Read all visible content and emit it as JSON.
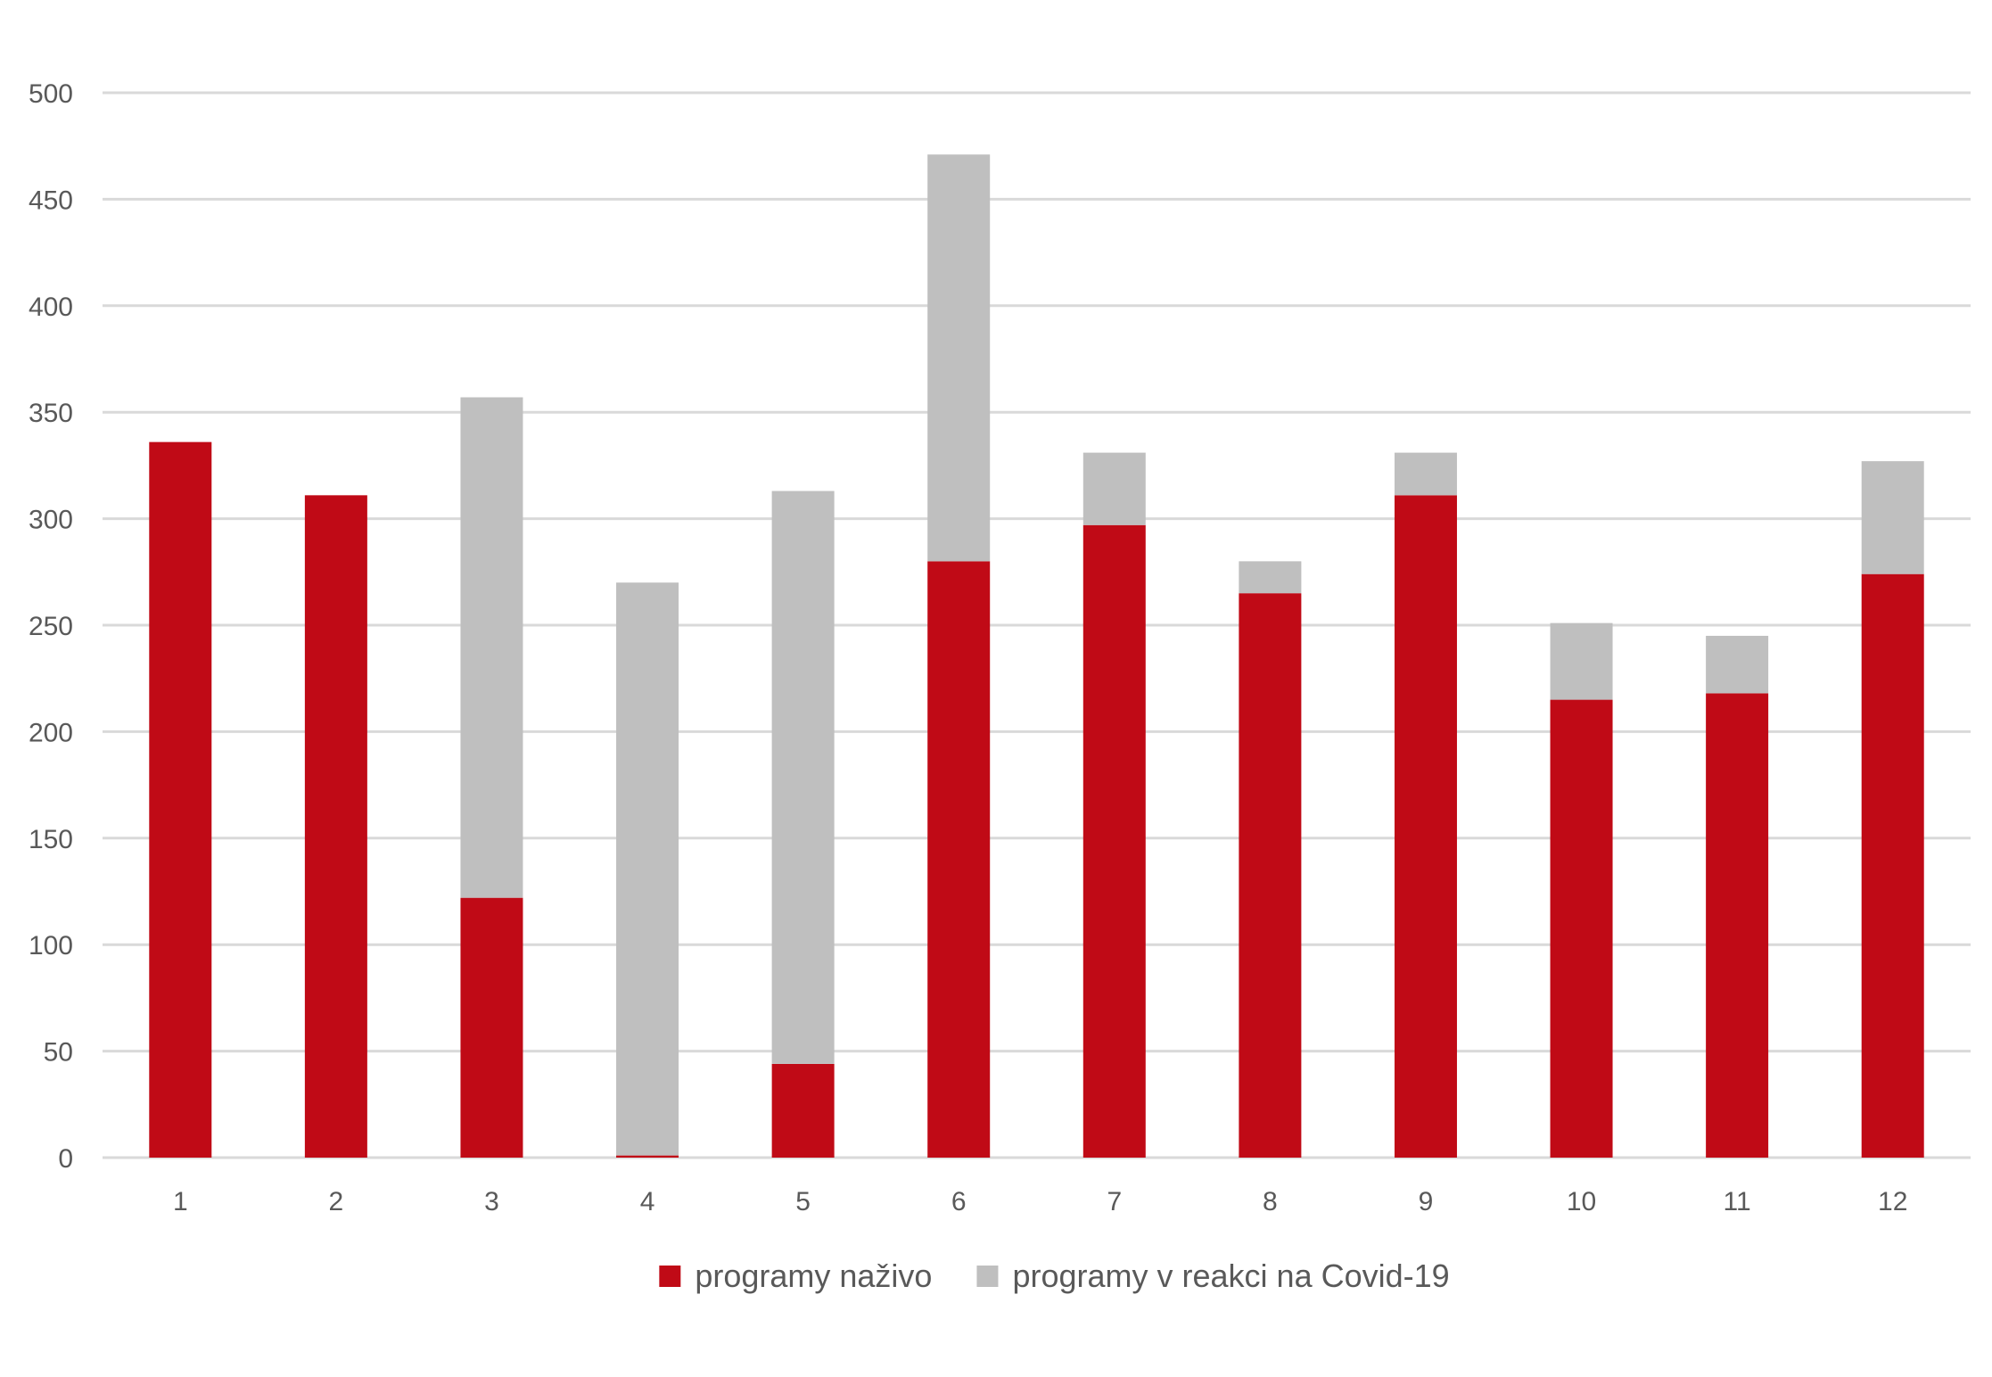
{
  "chart_data": {
    "type": "bar",
    "stacked": true,
    "title": "",
    "xlabel": "",
    "ylabel": "",
    "categories": [
      "1",
      "2",
      "3",
      "4",
      "5",
      "6",
      "7",
      "8",
      "9",
      "10",
      "11",
      "12"
    ],
    "series": [
      {
        "name": "programy naživo",
        "color": "#C00A16",
        "values": [
          336,
          311,
          122,
          1,
          44,
          280,
          297,
          265,
          311,
          215,
          218,
          274
        ]
      },
      {
        "name": "programy v reakci na Covid-19",
        "color": "#BFBFBF",
        "values": [
          0,
          0,
          235,
          269,
          269,
          191,
          34,
          15,
          20,
          36,
          27,
          53
        ]
      }
    ],
    "ylim": [
      0,
      500
    ],
    "yticks": [
      0,
      50,
      100,
      150,
      200,
      250,
      300,
      350,
      400,
      450,
      500
    ],
    "grid": true,
    "gridColor": "#D9D9D9",
    "legend": "bottom-center"
  }
}
